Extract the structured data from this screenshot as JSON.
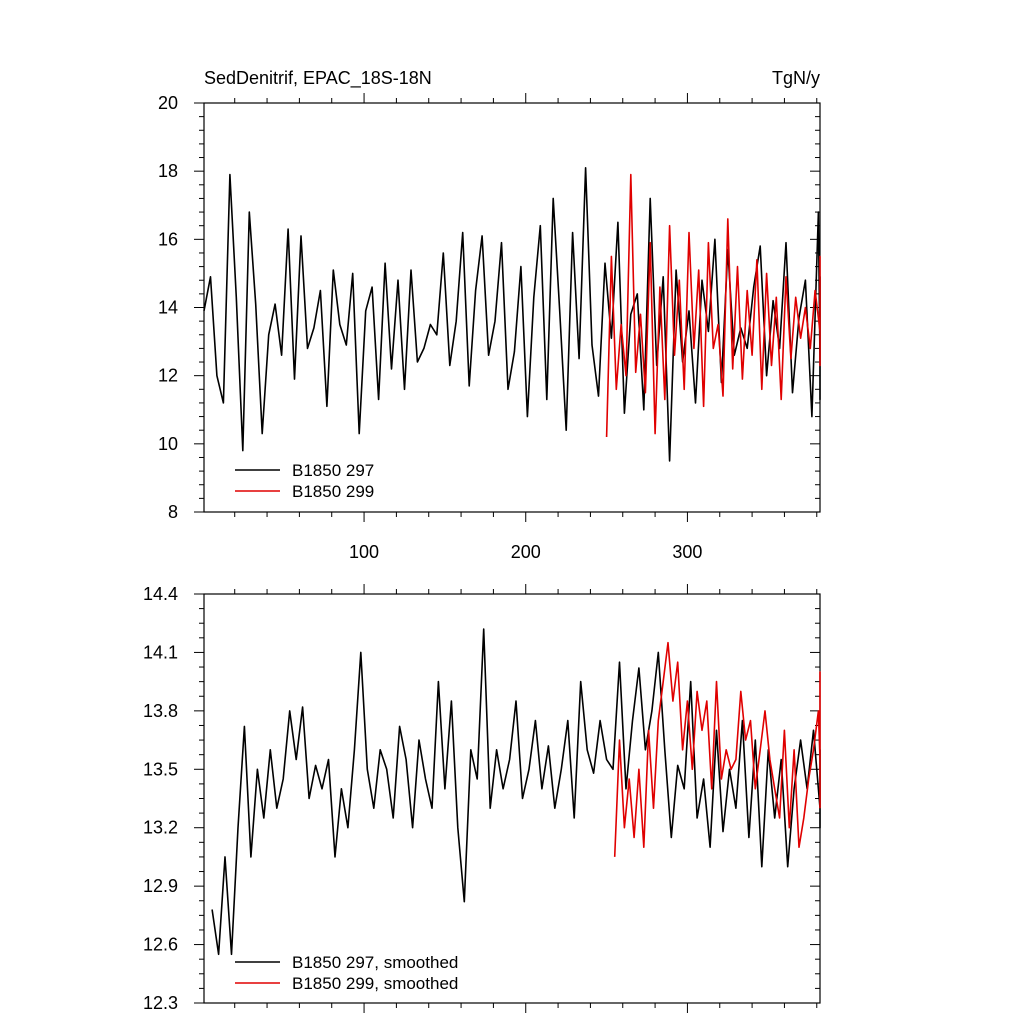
{
  "chart_data": [
    {
      "type": "line",
      "title": "SedDenitrif, EPAC_18S-18N",
      "units_label": "TgN/y",
      "xlim": [
        1,
        382
      ],
      "ylim": [
        8,
        20
      ],
      "x_ticks": [
        100,
        200,
        300
      ],
      "x_tick_labels": [
        "100",
        "200",
        "300"
      ],
      "y_ticks": [
        8,
        10,
        12,
        14,
        16,
        18,
        20
      ],
      "y_tick_labels": [
        "8",
        "10",
        "12",
        "14",
        "16",
        "18",
        "20"
      ],
      "grid": false,
      "legend_position": "bottom-left",
      "series": [
        {
          "name": "B1850 297",
          "color": "#000000",
          "x_start": 1,
          "x_step": 4,
          "values": [
            13.9,
            14.9,
            12.0,
            11.2,
            17.9,
            14.3,
            9.8,
            16.8,
            14.1,
            10.3,
            13.2,
            14.1,
            12.6,
            16.3,
            11.9,
            16.1,
            12.8,
            13.4,
            14.5,
            11.1,
            15.1,
            13.5,
            12.9,
            15.0,
            10.3,
            13.9,
            14.6,
            11.3,
            15.3,
            12.2,
            14.8,
            11.6,
            15.1,
            12.4,
            12.8,
            13.5,
            13.2,
            15.6,
            12.3,
            13.6,
            16.2,
            11.7,
            14.5,
            16.1,
            12.6,
            13.6,
            15.9,
            11.6,
            12.7,
            15.2,
            10.8,
            14.3,
            16.4,
            11.3,
            17.2,
            13.9,
            10.4,
            16.2,
            12.5,
            18.1,
            12.9,
            11.4,
            15.3,
            13.1,
            16.5,
            10.9,
            13.8,
            14.4,
            11.0,
            17.2,
            12.3,
            14.9,
            9.5,
            15.1,
            12.4,
            13.9,
            11.2,
            14.8,
            13.3,
            16.0,
            11.8,
            15.7,
            12.6,
            13.4,
            12.8,
            14.6,
            15.8,
            12.0,
            14.2,
            12.8,
            15.9,
            11.5,
            13.7,
            14.8,
            10.8,
            16.8,
            12.4,
            14.9,
            11.3,
            14.2,
            13.7
          ]
        },
        {
          "name": "B1850 299",
          "color": "#e00000",
          "x_start": 250,
          "x_step": 3,
          "values": [
            10.2,
            15.5,
            11.6,
            13.5,
            12.0,
            17.9,
            12.1,
            13.8,
            11.5,
            15.9,
            10.3,
            14.6,
            11.3,
            16.4,
            12.6,
            14.8,
            11.6,
            16.2,
            12.8,
            15.1,
            11.1,
            15.9,
            12.8,
            13.5,
            11.4,
            16.6,
            12.2,
            15.2,
            11.9,
            14.5,
            12.6,
            15.4,
            11.6,
            15.0,
            12.3,
            14.3,
            11.3,
            14.9,
            12.5,
            14.3,
            13.1,
            14.0,
            12.8,
            14.5,
            13.3,
            12.9,
            15.5,
            12.9,
            14.2,
            12.5,
            14.3,
            12.3,
            13.9
          ]
        }
      ]
    },
    {
      "type": "line",
      "title": "",
      "xlim": [
        1,
        382
      ],
      "ylim": [
        12.3,
        14.4
      ],
      "x_ticks": [
        100,
        200,
        300
      ],
      "x_tick_labels": [
        "",
        "",
        ""
      ],
      "y_ticks": [
        12.3,
        12.6,
        12.9,
        13.2,
        13.5,
        13.8,
        14.1,
        14.4
      ],
      "y_tick_labels": [
        "12.3",
        "12.6",
        "12.9",
        "13.2",
        "13.5",
        "13.8",
        "14.1",
        "14.4"
      ],
      "grid": false,
      "legend_position": "bottom-left",
      "series": [
        {
          "name": "B1850 297, smoothed",
          "color": "#000000",
          "x_start": 6,
          "x_step": 4,
          "values": [
            12.78,
            12.55,
            13.05,
            12.55,
            13.2,
            13.72,
            13.05,
            13.5,
            13.25,
            13.6,
            13.3,
            13.45,
            13.8,
            13.55,
            13.82,
            13.35,
            13.52,
            13.4,
            13.55,
            13.05,
            13.4,
            13.2,
            13.6,
            14.1,
            13.5,
            13.3,
            13.6,
            13.5,
            13.25,
            13.72,
            13.55,
            13.2,
            13.65,
            13.45,
            13.3,
            13.95,
            13.4,
            13.85,
            13.2,
            12.82,
            13.6,
            13.45,
            14.22,
            13.3,
            13.6,
            13.4,
            13.55,
            13.85,
            13.35,
            13.5,
            13.75,
            13.4,
            13.62,
            13.3,
            13.5,
            13.75,
            13.25,
            13.95,
            13.6,
            13.48,
            13.75,
            13.55,
            13.5,
            14.05,
            13.4,
            13.75,
            14.02,
            13.6,
            13.8,
            14.1,
            13.6,
            13.15,
            13.52,
            13.4,
            13.95,
            13.25,
            13.45,
            13.1,
            13.7,
            13.18,
            13.5,
            13.3,
            13.75,
            13.15,
            13.65,
            13.0,
            13.6,
            13.25,
            13.55,
            13.0,
            13.4,
            13.65,
            13.4,
            13.7,
            13.3,
            13.6,
            13.2,
            13.55
          ]
        },
        {
          "name": "B1850 299, smoothed",
          "color": "#e00000",
          "x_start": 255,
          "x_step": 3,
          "values": [
            13.05,
            13.65,
            13.2,
            13.45,
            13.15,
            13.5,
            13.1,
            13.7,
            13.3,
            13.75,
            13.95,
            14.15,
            13.85,
            14.05,
            13.6,
            13.85,
            13.5,
            13.9,
            13.7,
            13.85,
            13.4,
            13.95,
            13.45,
            13.6,
            13.5,
            13.55,
            13.9,
            13.65,
            13.75,
            13.4,
            13.6,
            13.8,
            13.55,
            13.4,
            13.25,
            13.7,
            13.2,
            13.6,
            13.1,
            13.25,
            13.45,
            13.6,
            13.8,
            13.55,
            13.7,
            14.0,
            13.6,
            13.75,
            13.55,
            13.7,
            13.5,
            13.3
          ]
        }
      ]
    }
  ]
}
